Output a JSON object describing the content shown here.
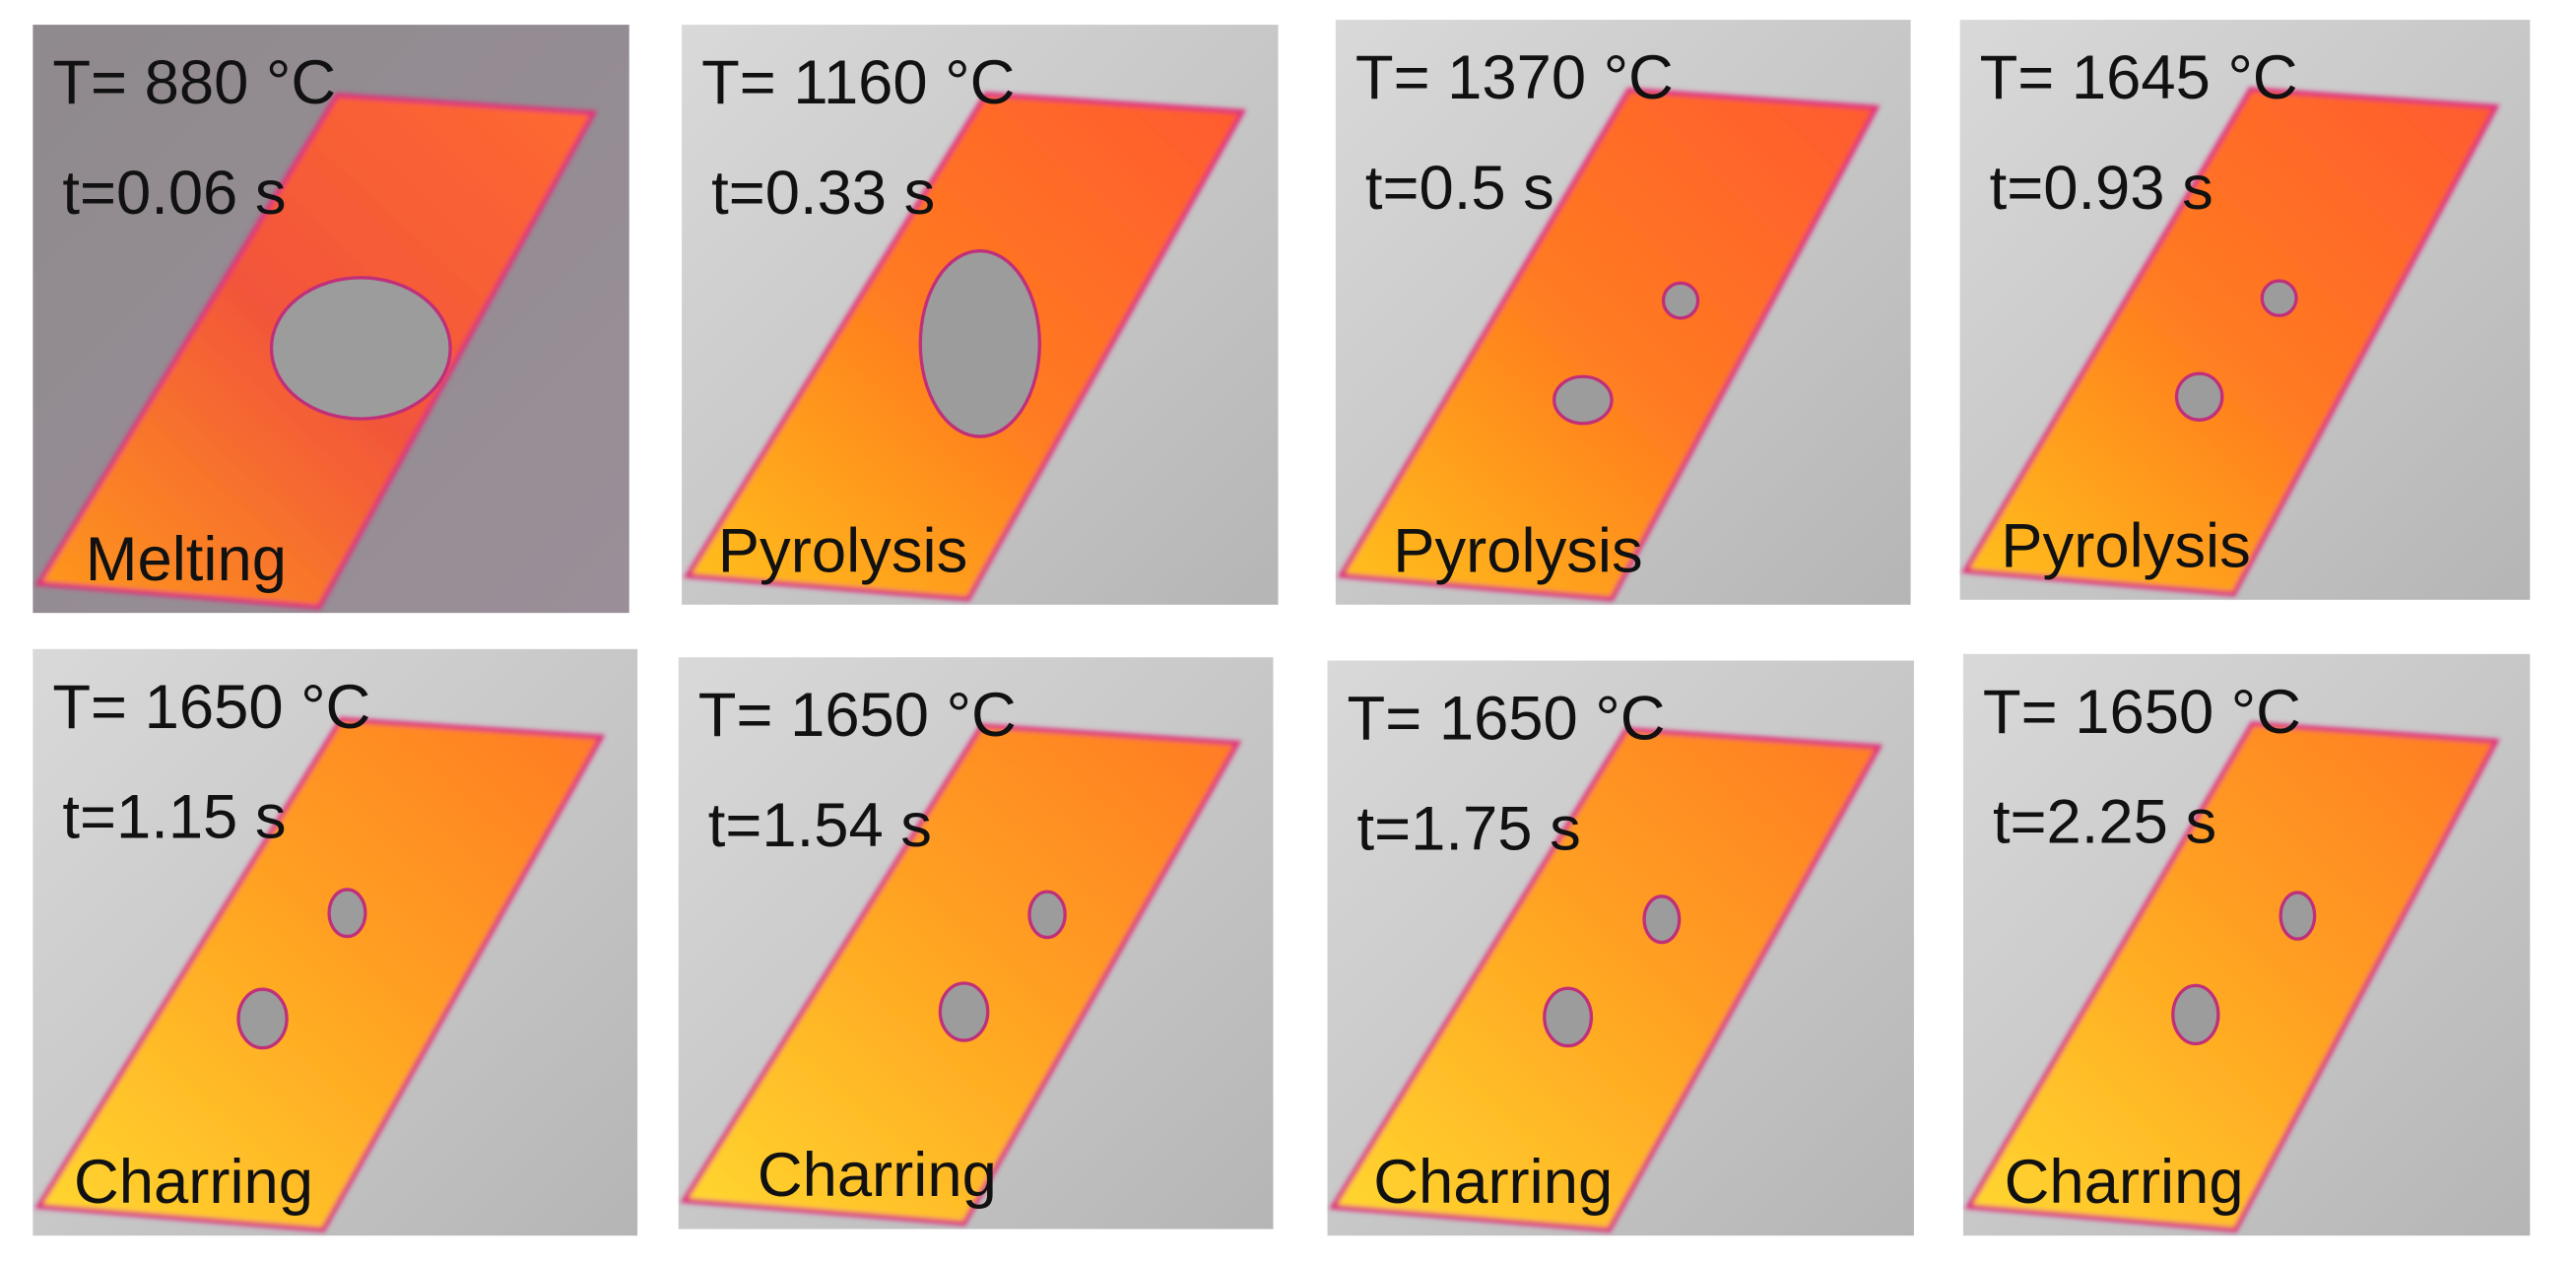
{
  "panels": [
    {
      "temperature": "T= 880 °C",
      "time": "t=0.06 s",
      "stage": "Melting"
    },
    {
      "temperature": "T= 1160 °C",
      "time": "t=0.33 s",
      "stage": "Pyrolysis"
    },
    {
      "temperature": "T= 1370 °C",
      "time": "t=0.5 s",
      "stage": "Pyrolysis"
    },
    {
      "temperature": "T= 1645 °C",
      "time": "t=0.93 s",
      "stage": "Pyrolysis"
    },
    {
      "temperature": "T= 1650 °C",
      "time": "t=1.15 s",
      "stage": "Charring"
    },
    {
      "temperature": "T= 1650 °C",
      "time": "t=1.54 s",
      "stage": "Charring"
    },
    {
      "temperature": "T= 1650 °C",
      "time": "t=1.75 s",
      "stage": "Charring"
    },
    {
      "temperature": "T= 1650 °C",
      "time": "t=2.25 s",
      "stage": "Charring"
    }
  ]
}
